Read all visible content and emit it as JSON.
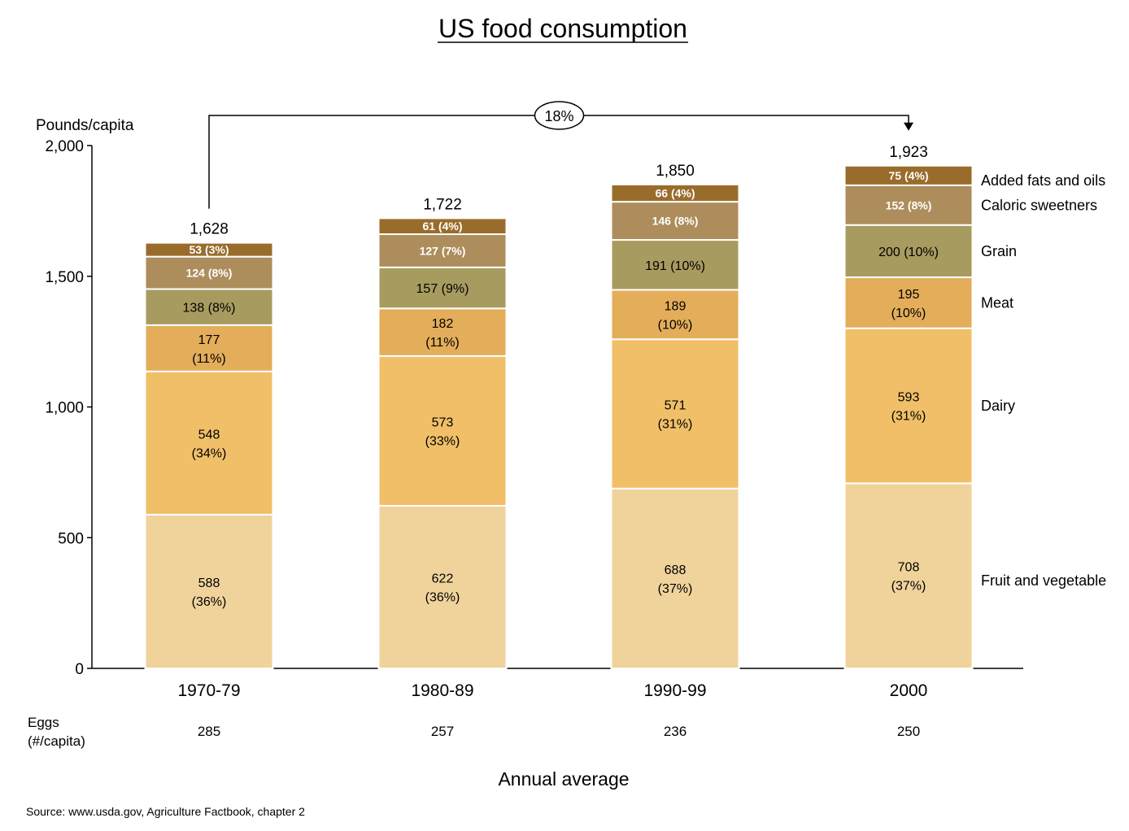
{
  "chart_data": {
    "type": "bar",
    "stacked": true,
    "title": "US food consumption",
    "ylabel": "Pounds/capita",
    "xlabel": "Annual average",
    "ylim": [
      0,
      2000
    ],
    "yticks": [
      0,
      500,
      1000,
      1500,
      2000
    ],
    "ytick_labels": [
      "0",
      "500",
      "1,000",
      "1,500",
      "2,000"
    ],
    "categories": [
      "1970-79",
      "1980-89",
      "1990-99",
      "2000"
    ],
    "totals": [
      1628,
      1722,
      1850,
      1923
    ],
    "total_labels": [
      "1,628",
      "1,722",
      "1,850",
      "1,923"
    ],
    "series": [
      {
        "name": "Fruit and vegetable",
        "color": "#f0d39b",
        "text_color": "#000000",
        "values": [
          588,
          622,
          688,
          708
        ],
        "labels": [
          [
            "588",
            "(36%)"
          ],
          [
            "622",
            "(36%)"
          ],
          [
            "688",
            "(37%)"
          ],
          [
            "708",
            "(37%)"
          ]
        ]
      },
      {
        "name": "Dairy",
        "color": "#f0bf68",
        "text_color": "#000000",
        "values": [
          548,
          573,
          571,
          593
        ],
        "labels": [
          [
            "548",
            "(34%)"
          ],
          [
            "573",
            "(33%)"
          ],
          [
            "571",
            "(31%)"
          ],
          [
            "593",
            "(31%)"
          ]
        ]
      },
      {
        "name": "Meat",
        "color": "#e3ad5a",
        "text_color": "#000000",
        "values": [
          177,
          182,
          189,
          195
        ],
        "labels": [
          [
            "177",
            "(11%)"
          ],
          [
            "182",
            "(11%)"
          ],
          [
            "189",
            "(10%)"
          ],
          [
            "195",
            "(10%)"
          ]
        ]
      },
      {
        "name": "Grain",
        "color": "#a89b5f",
        "text_color": "#000000",
        "values": [
          138,
          157,
          191,
          200
        ],
        "labels": [
          [
            "138 (8%)"
          ],
          [
            "157 (9%)"
          ],
          [
            "191 (10%)"
          ],
          [
            "200 (10%)"
          ]
        ]
      },
      {
        "name": "Caloric sweetners",
        "color": "#ad8d5c",
        "text_color": "#ffffff",
        "values": [
          124,
          127,
          146,
          152
        ],
        "labels": [
          [
            "124 (8%)"
          ],
          [
            "127 (7%)"
          ],
          [
            "146 (8%)"
          ],
          [
            "152 (8%)"
          ]
        ]
      },
      {
        "name": "Added fats and oils",
        "color": "#9a6c2c",
        "text_color": "#ffffff",
        "values": [
          53,
          61,
          66,
          75
        ],
        "labels": [
          [
            "53 (3%)"
          ],
          [
            "61 (4%)"
          ],
          [
            "66 (4%)"
          ],
          [
            "75 (4%)"
          ]
        ]
      }
    ],
    "growth_annotation": {
      "label": "18%",
      "from": "1970-79",
      "to": "2000"
    },
    "eggs": {
      "label_lines": [
        "Eggs",
        "(#/capita)"
      ],
      "values": [
        "285",
        "257",
        "236",
        "250"
      ]
    },
    "source": "Source: www.usda.gov, Agriculture Factbook, chapter 2"
  }
}
